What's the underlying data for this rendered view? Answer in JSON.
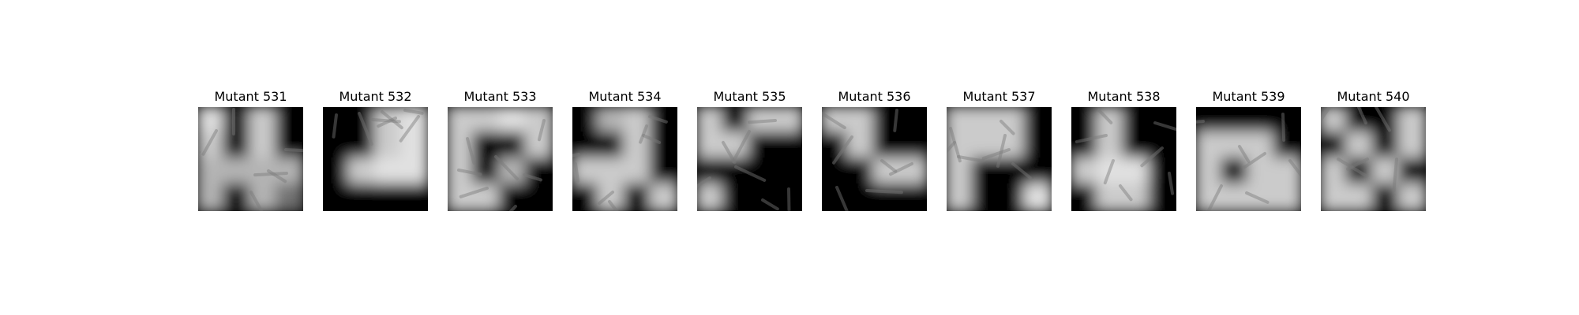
{
  "figure": {
    "panels": [
      {
        "title": "Mutant 531",
        "colormap": "gray",
        "mask": [
          [
            1.0,
            0.0,
            0.9,
            0.0
          ],
          [
            0.9,
            0.0,
            0.9,
            0.0
          ],
          [
            0.8,
            0.8,
            0.8,
            0.8
          ],
          [
            0.8,
            0.0,
            0.8,
            0.5
          ]
        ]
      },
      {
        "title": "Mutant 532",
        "colormap": "gray",
        "mask": [
          [
            0.0,
            0.0,
            0.9,
            1.0
          ],
          [
            0.0,
            0.0,
            0.9,
            1.0
          ],
          [
            0.0,
            0.9,
            1.0,
            1.0
          ],
          [
            0.0,
            0.0,
            0.0,
            0.0
          ]
        ]
      },
      {
        "title": "Mutant 533",
        "colormap": "gray",
        "mask": [
          [
            0.9,
            0.9,
            1.0,
            0.9
          ],
          [
            0.9,
            0.0,
            0.0,
            0.9
          ],
          [
            0.9,
            0.0,
            0.8,
            0.0
          ],
          [
            0.9,
            0.9,
            0.0,
            0.0
          ]
        ]
      },
      {
        "title": "Mutant 534",
        "colormap": "gray",
        "mask": [
          [
            0.0,
            0.8,
            0.9,
            0.0
          ],
          [
            0.0,
            0.0,
            0.9,
            0.0
          ],
          [
            0.9,
            0.9,
            0.9,
            0.0
          ],
          [
            0.0,
            0.9,
            0.0,
            0.9
          ]
        ]
      },
      {
        "title": "Mutant 535",
        "colormap": "gray",
        "mask": [
          [
            0.9,
            0.0,
            0.9,
            0.9
          ],
          [
            0.9,
            0.9,
            0.0,
            0.0
          ],
          [
            0.0,
            0.0,
            0.0,
            0.0
          ],
          [
            0.9,
            0.0,
            0.0,
            0.0
          ]
        ]
      },
      {
        "title": "Mutant 536",
        "colormap": "gray",
        "mask": [
          [
            0.9,
            0.9,
            0.0,
            0.0
          ],
          [
            0.0,
            0.9,
            0.0,
            0.0
          ],
          [
            0.0,
            0.0,
            0.9,
            0.9
          ],
          [
            0.0,
            0.0,
            0.0,
            0.0
          ]
        ]
      },
      {
        "title": "Mutant 537",
        "colormap": "gray",
        "mask": [
          [
            0.9,
            0.9,
            0.9,
            0.0
          ],
          [
            0.9,
            0.9,
            0.9,
            0.0
          ],
          [
            0.9,
            0.0,
            0.0,
            0.0
          ],
          [
            0.9,
            0.0,
            0.0,
            1.0
          ]
        ]
      },
      {
        "title": "Mutant 538",
        "colormap": "gray",
        "mask": [
          [
            0.0,
            0.9,
            0.0,
            0.0
          ],
          [
            0.0,
            0.9,
            0.0,
            0.0
          ],
          [
            0.9,
            1.0,
            1.0,
            0.0
          ],
          [
            0.0,
            0.9,
            0.9,
            0.0
          ]
        ]
      },
      {
        "title": "Mutant 539",
        "colormap": "gray",
        "mask": [
          [
            0.0,
            0.0,
            0.0,
            0.0
          ],
          [
            0.9,
            0.9,
            0.9,
            0.0
          ],
          [
            0.9,
            0.0,
            0.9,
            0.9
          ],
          [
            0.9,
            0.9,
            0.9,
            0.9
          ]
        ]
      },
      {
        "title": "Mutant 540",
        "colormap": "gray",
        "mask": [
          [
            0.9,
            0.0,
            0.0,
            0.9
          ],
          [
            0.0,
            0.9,
            0.0,
            0.9
          ],
          [
            0.9,
            0.0,
            0.9,
            0.0
          ],
          [
            0.9,
            0.9,
            0.0,
            0.9
          ]
        ]
      }
    ]
  }
}
